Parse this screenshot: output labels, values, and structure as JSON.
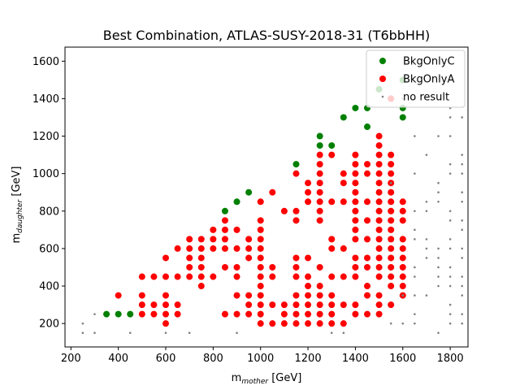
{
  "chart_data": {
    "type": "scatter",
    "title": "Best Combination, ATLAS-SUSY-2018-31 (T6bbHH)",
    "xlabel": "m_mother [GeV]",
    "ylabel": "m_daughter [GeV]",
    "xlabel_main": "m",
    "xlabel_sub": "mother",
    "xlabel_unit": " [GeV]",
    "ylabel_main": "m",
    "ylabel_sub": "daughter",
    "ylabel_unit": " [GeV]",
    "xlim": [
      175,
      1875
    ],
    "ylim": [
      75,
      1675
    ],
    "xticks": [
      200,
      400,
      600,
      800,
      1000,
      1200,
      1400,
      1600,
      1800
    ],
    "yticks": [
      200,
      400,
      600,
      800,
      1000,
      1200,
      1400,
      1600
    ],
    "legend_position": "top-right",
    "series": [
      {
        "name": "BkgOnlyC",
        "color": "#008000",
        "marker": "circle-large",
        "points": [
          [
            350,
            250
          ],
          [
            400,
            250
          ],
          [
            450,
            250
          ],
          [
            850,
            800
          ],
          [
            900,
            850
          ],
          [
            950,
            900
          ],
          [
            1150,
            1050
          ],
          [
            1250,
            1150
          ],
          [
            1250,
            1200
          ],
          [
            1300,
            1150
          ],
          [
            1350,
            1300
          ],
          [
            1400,
            1350
          ],
          [
            1450,
            1350
          ],
          [
            1450,
            1250
          ],
          [
            1500,
            1450
          ],
          [
            1550,
            1400
          ],
          [
            1600,
            1500
          ],
          [
            1600,
            1300
          ],
          [
            1600,
            1350
          ]
        ]
      },
      {
        "name": "BkgOnlyA",
        "color": "#ff0000",
        "marker": "circle-large",
        "points": [
          [
            400,
            350
          ],
          [
            500,
            450
          ],
          [
            500,
            350
          ],
          [
            500,
            300
          ],
          [
            500,
            250
          ],
          [
            550,
            450
          ],
          [
            550,
            300
          ],
          [
            550,
            250
          ],
          [
            600,
            550
          ],
          [
            600,
            450
          ],
          [
            600,
            350
          ],
          [
            600,
            300
          ],
          [
            600,
            250
          ],
          [
            600,
            200
          ],
          [
            650,
            600
          ],
          [
            650,
            450
          ],
          [
            650,
            300
          ],
          [
            650,
            250
          ],
          [
            700,
            650
          ],
          [
            700,
            600
          ],
          [
            700,
            550
          ],
          [
            700,
            500
          ],
          [
            700,
            450
          ],
          [
            750,
            650
          ],
          [
            750,
            600
          ],
          [
            750,
            550
          ],
          [
            750,
            500
          ],
          [
            750,
            450
          ],
          [
            750,
            400
          ],
          [
            800,
            700
          ],
          [
            800,
            650
          ],
          [
            800,
            600
          ],
          [
            800,
            450
          ],
          [
            850,
            750
          ],
          [
            850,
            700
          ],
          [
            850,
            650
          ],
          [
            850,
            600
          ],
          [
            850,
            500
          ],
          [
            850,
            250
          ],
          [
            900,
            700
          ],
          [
            900,
            600
          ],
          [
            900,
            500
          ],
          [
            900,
            450
          ],
          [
            900,
            350
          ],
          [
            900,
            250
          ],
          [
            950,
            650
          ],
          [
            950,
            600
          ],
          [
            950,
            550
          ],
          [
            950,
            350
          ],
          [
            950,
            300
          ],
          [
            950,
            250
          ],
          [
            1000,
            850
          ],
          [
            1000,
            750
          ],
          [
            1000,
            700
          ],
          [
            1000,
            650
          ],
          [
            1000,
            600
          ],
          [
            1000,
            550
          ],
          [
            1000,
            500
          ],
          [
            1000,
            450
          ],
          [
            1000,
            400
          ],
          [
            1000,
            350
          ],
          [
            1000,
            300
          ],
          [
            1000,
            250
          ],
          [
            1000,
            200
          ],
          [
            1050,
            900
          ],
          [
            1050,
            500
          ],
          [
            1050,
            450
          ],
          [
            1050,
            300
          ],
          [
            1050,
            200
          ],
          [
            1100,
            800
          ],
          [
            1100,
            300
          ],
          [
            1100,
            250
          ],
          [
            1100,
            200
          ],
          [
            1150,
            1000
          ],
          [
            1150,
            800
          ],
          [
            1150,
            750
          ],
          [
            1150,
            550
          ],
          [
            1150,
            500
          ],
          [
            1150,
            450
          ],
          [
            1150,
            350
          ],
          [
            1150,
            300
          ],
          [
            1150,
            250
          ],
          [
            1150,
            200
          ],
          [
            1200,
            950
          ],
          [
            1200,
            900
          ],
          [
            1200,
            850
          ],
          [
            1200,
            550
          ],
          [
            1200,
            450
          ],
          [
            1200,
            400
          ],
          [
            1200,
            350
          ],
          [
            1200,
            300
          ],
          [
            1200,
            250
          ],
          [
            1200,
            200
          ],
          [
            1250,
            1100
          ],
          [
            1250,
            1050
          ],
          [
            1250,
            1000
          ],
          [
            1250,
            950
          ],
          [
            1250,
            900
          ],
          [
            1250,
            850
          ],
          [
            1250,
            800
          ],
          [
            1250,
            750
          ],
          [
            1250,
            500
          ],
          [
            1250,
            400
          ],
          [
            1250,
            350
          ],
          [
            1250,
            300
          ],
          [
            1250,
            250
          ],
          [
            1250,
            200
          ],
          [
            1300,
            1100
          ],
          [
            1300,
            850
          ],
          [
            1300,
            650
          ],
          [
            1300,
            600
          ],
          [
            1300,
            450
          ],
          [
            1300,
            350
          ],
          [
            1300,
            300
          ],
          [
            1300,
            250
          ],
          [
            1300,
            200
          ],
          [
            1350,
            1000
          ],
          [
            1350,
            950
          ],
          [
            1350,
            850
          ],
          [
            1350,
            600
          ],
          [
            1350,
            450
          ],
          [
            1350,
            300
          ],
          [
            1350,
            200
          ],
          [
            1400,
            1100
          ],
          [
            1400,
            1050
          ],
          [
            1400,
            1000
          ],
          [
            1400,
            950
          ],
          [
            1400,
            900
          ],
          [
            1400,
            850
          ],
          [
            1400,
            800
          ],
          [
            1400,
            750
          ],
          [
            1400,
            700
          ],
          [
            1400,
            650
          ],
          [
            1400,
            550
          ],
          [
            1400,
            500
          ],
          [
            1400,
            450
          ],
          [
            1400,
            300
          ],
          [
            1400,
            250
          ],
          [
            1450,
            1050
          ],
          [
            1450,
            1000
          ],
          [
            1450,
            850
          ],
          [
            1450,
            750
          ],
          [
            1450,
            650
          ],
          [
            1450,
            550
          ],
          [
            1450,
            500
          ],
          [
            1450,
            400
          ],
          [
            1450,
            350
          ],
          [
            1450,
            250
          ],
          [
            1500,
            1200
          ],
          [
            1500,
            1150
          ],
          [
            1500,
            1100
          ],
          [
            1500,
            1050
          ],
          [
            1500,
            1000
          ],
          [
            1500,
            950
          ],
          [
            1500,
            900
          ],
          [
            1500,
            850
          ],
          [
            1500,
            800
          ],
          [
            1500,
            750
          ],
          [
            1500,
            700
          ],
          [
            1500,
            650
          ],
          [
            1500,
            600
          ],
          [
            1500,
            550
          ],
          [
            1500,
            500
          ],
          [
            1500,
            450
          ],
          [
            1500,
            350
          ],
          [
            1500,
            300
          ],
          [
            1500,
            250
          ],
          [
            1550,
            1400
          ],
          [
            1550,
            1100
          ],
          [
            1550,
            1050
          ],
          [
            1550,
            1000
          ],
          [
            1550,
            950
          ],
          [
            1550,
            900
          ],
          [
            1550,
            850
          ],
          [
            1550,
            800
          ],
          [
            1550,
            750
          ],
          [
            1550,
            700
          ],
          [
            1550,
            650
          ],
          [
            1550,
            600
          ],
          [
            1550,
            550
          ],
          [
            1550,
            500
          ],
          [
            1550,
            450
          ],
          [
            1550,
            400
          ],
          [
            1550,
            300
          ],
          [
            1600,
            850
          ],
          [
            1600,
            800
          ],
          [
            1600,
            750
          ],
          [
            1600,
            650
          ],
          [
            1600,
            600
          ],
          [
            1600,
            550
          ],
          [
            1600,
            500
          ],
          [
            1600,
            450
          ],
          [
            1600,
            400
          ],
          [
            1600,
            350
          ]
        ]
      },
      {
        "name": "no result",
        "color": "#808080",
        "marker": "dot-small",
        "points": [
          [
            250,
            200
          ],
          [
            250,
            150
          ],
          [
            300,
            250
          ],
          [
            300,
            150
          ],
          [
            450,
            150
          ],
          [
            600,
            150
          ],
          [
            700,
            150
          ],
          [
            900,
            150
          ],
          [
            1300,
            150
          ],
          [
            1350,
            150
          ],
          [
            1550,
            950
          ],
          [
            1550,
            200
          ],
          [
            1600,
            1400
          ],
          [
            1600,
            350
          ],
          [
            1600,
            200
          ],
          [
            1650,
            1400
          ],
          [
            1650,
            1200
          ],
          [
            1650,
            1000
          ],
          [
            1650,
            800
          ],
          [
            1650,
            700
          ],
          [
            1650,
            650
          ],
          [
            1650,
            500
          ],
          [
            1650,
            450
          ],
          [
            1650,
            350
          ],
          [
            1650,
            250
          ],
          [
            1650,
            200
          ],
          [
            1700,
            1100
          ],
          [
            1700,
            850
          ],
          [
            1700,
            800
          ],
          [
            1700,
            650
          ],
          [
            1700,
            600
          ],
          [
            1700,
            550
          ],
          [
            1700,
            350
          ],
          [
            1750,
            1200
          ],
          [
            1750,
            950
          ],
          [
            1750,
            900
          ],
          [
            1750,
            850
          ],
          [
            1750,
            600
          ],
          [
            1750,
            550
          ],
          [
            1750,
            500
          ],
          [
            1750,
            450
          ],
          [
            1750,
            400
          ],
          [
            1750,
            150
          ],
          [
            1800,
            1350
          ],
          [
            1800,
            1300
          ],
          [
            1800,
            1200
          ],
          [
            1800,
            1050
          ],
          [
            1800,
            1000
          ],
          [
            1800,
            800
          ],
          [
            1800,
            750
          ],
          [
            1800,
            650
          ],
          [
            1800,
            600
          ],
          [
            1800,
            500
          ],
          [
            1800,
            450
          ],
          [
            1800,
            400
          ],
          [
            1800,
            300
          ],
          [
            1800,
            250
          ],
          [
            1800,
            200
          ],
          [
            1850,
            1300
          ],
          [
            1850,
            1100
          ],
          [
            1850,
            1050
          ],
          [
            1850,
            1000
          ],
          [
            1850,
            900
          ],
          [
            1850,
            850
          ],
          [
            1850,
            750
          ],
          [
            1850,
            700
          ],
          [
            1850,
            600
          ],
          [
            1850,
            550
          ],
          [
            1850,
            450
          ],
          [
            1850,
            400
          ],
          [
            1850,
            350
          ],
          [
            1850,
            250
          ],
          [
            1850,
            200
          ]
        ]
      }
    ]
  }
}
